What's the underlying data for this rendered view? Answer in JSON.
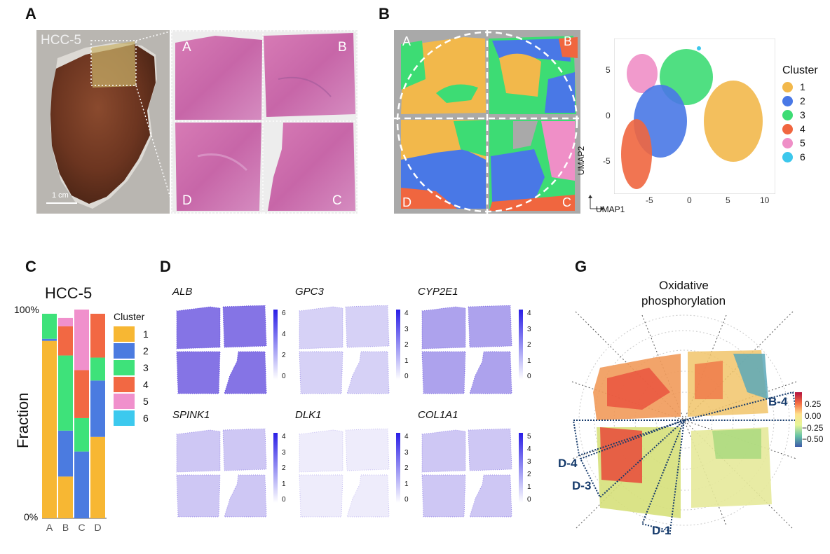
{
  "panel_letters": {
    "a": "A",
    "b": "B",
    "c": "C",
    "d": "D",
    "g": "G"
  },
  "panel_a": {
    "sample_label": "HCC-5",
    "scale_bar_label": "1 cm",
    "section_labels": {
      "top_left": "A",
      "top_right": "B",
      "bottom_left": "D",
      "bottom_right": "C"
    }
  },
  "panel_b": {
    "section_labels": {
      "top_left": "A",
      "top_right": "B",
      "bottom_left": "D",
      "bottom_right": "C"
    },
    "umap": {
      "xlabel": "UMAP1",
      "ylabel": "UMAP2",
      "x_ticks": [
        "-5",
        "0",
        "5",
        "10"
      ],
      "y_ticks": [
        "5",
        "0",
        "-5"
      ],
      "legend_title": "Cluster",
      "clusters": [
        {
          "label": "1",
          "color": "#f2b84b"
        },
        {
          "label": "2",
          "color": "#4978e6"
        },
        {
          "label": "3",
          "color": "#3ddc74"
        },
        {
          "label": "4",
          "color": "#f0663f"
        },
        {
          "label": "5",
          "color": "#ef8fc7"
        },
        {
          "label": "6",
          "color": "#3cc7ec"
        }
      ]
    }
  },
  "chart_data": {
    "type": "bar",
    "title": "HCC-5",
    "xlabel": "",
    "ylabel": "Fraction",
    "y_tick_labels": [
      "100%",
      "0%"
    ],
    "ylim": [
      0,
      1
    ],
    "stacked": true,
    "categories": [
      "A",
      "B",
      "C",
      "D"
    ],
    "legend_title": "Cluster",
    "series": [
      {
        "name": "1",
        "color": "#f7b733",
        "values": [
          0.85,
          0.2,
          0.0,
          0.39
        ]
      },
      {
        "name": "2",
        "color": "#4b7be0",
        "values": [
          0.01,
          0.22,
          0.32,
          0.27
        ]
      },
      {
        "name": "3",
        "color": "#3ee27a",
        "values": [
          0.12,
          0.36,
          0.16,
          0.11
        ]
      },
      {
        "name": "4",
        "color": "#f26843",
        "values": [
          0.0,
          0.14,
          0.23,
          0.21
        ]
      },
      {
        "name": "5",
        "color": "#f090cc",
        "values": [
          0.0,
          0.04,
          0.29,
          0.0
        ]
      },
      {
        "name": "6",
        "color": "#3cc9ee",
        "values": [
          0.0,
          0.0,
          0.0,
          0.0
        ]
      }
    ]
  },
  "panel_d": {
    "genes": [
      {
        "name": "ALB",
        "ticks": [
          "6",
          "4",
          "2",
          "0"
        ]
      },
      {
        "name": "GPC3",
        "ticks": [
          "4",
          "3",
          "2",
          "1",
          "0"
        ]
      },
      {
        "name": "CYP2E1",
        "ticks": [
          "4",
          "3",
          "2",
          "1",
          "0"
        ]
      },
      {
        "name": "SPINK1",
        "ticks": [
          "4",
          "3",
          "2",
          "1",
          "0"
        ]
      },
      {
        "name": "DLK1",
        "ticks": [
          "4",
          "3",
          "2",
          "1",
          "0"
        ]
      },
      {
        "name": "COL1A1",
        "ticks": [
          "5",
          "4",
          "3",
          "2",
          "1",
          "0"
        ]
      }
    ]
  },
  "panel_g": {
    "title_line1": "Oxidative",
    "title_line2": "phosphorylation",
    "colorbar_ticks": [
      "0.25",
      "0.00",
      "−0.25",
      "−0.50"
    ],
    "regions": [
      "B-4",
      "D-4",
      "D-3",
      "D-1"
    ]
  }
}
